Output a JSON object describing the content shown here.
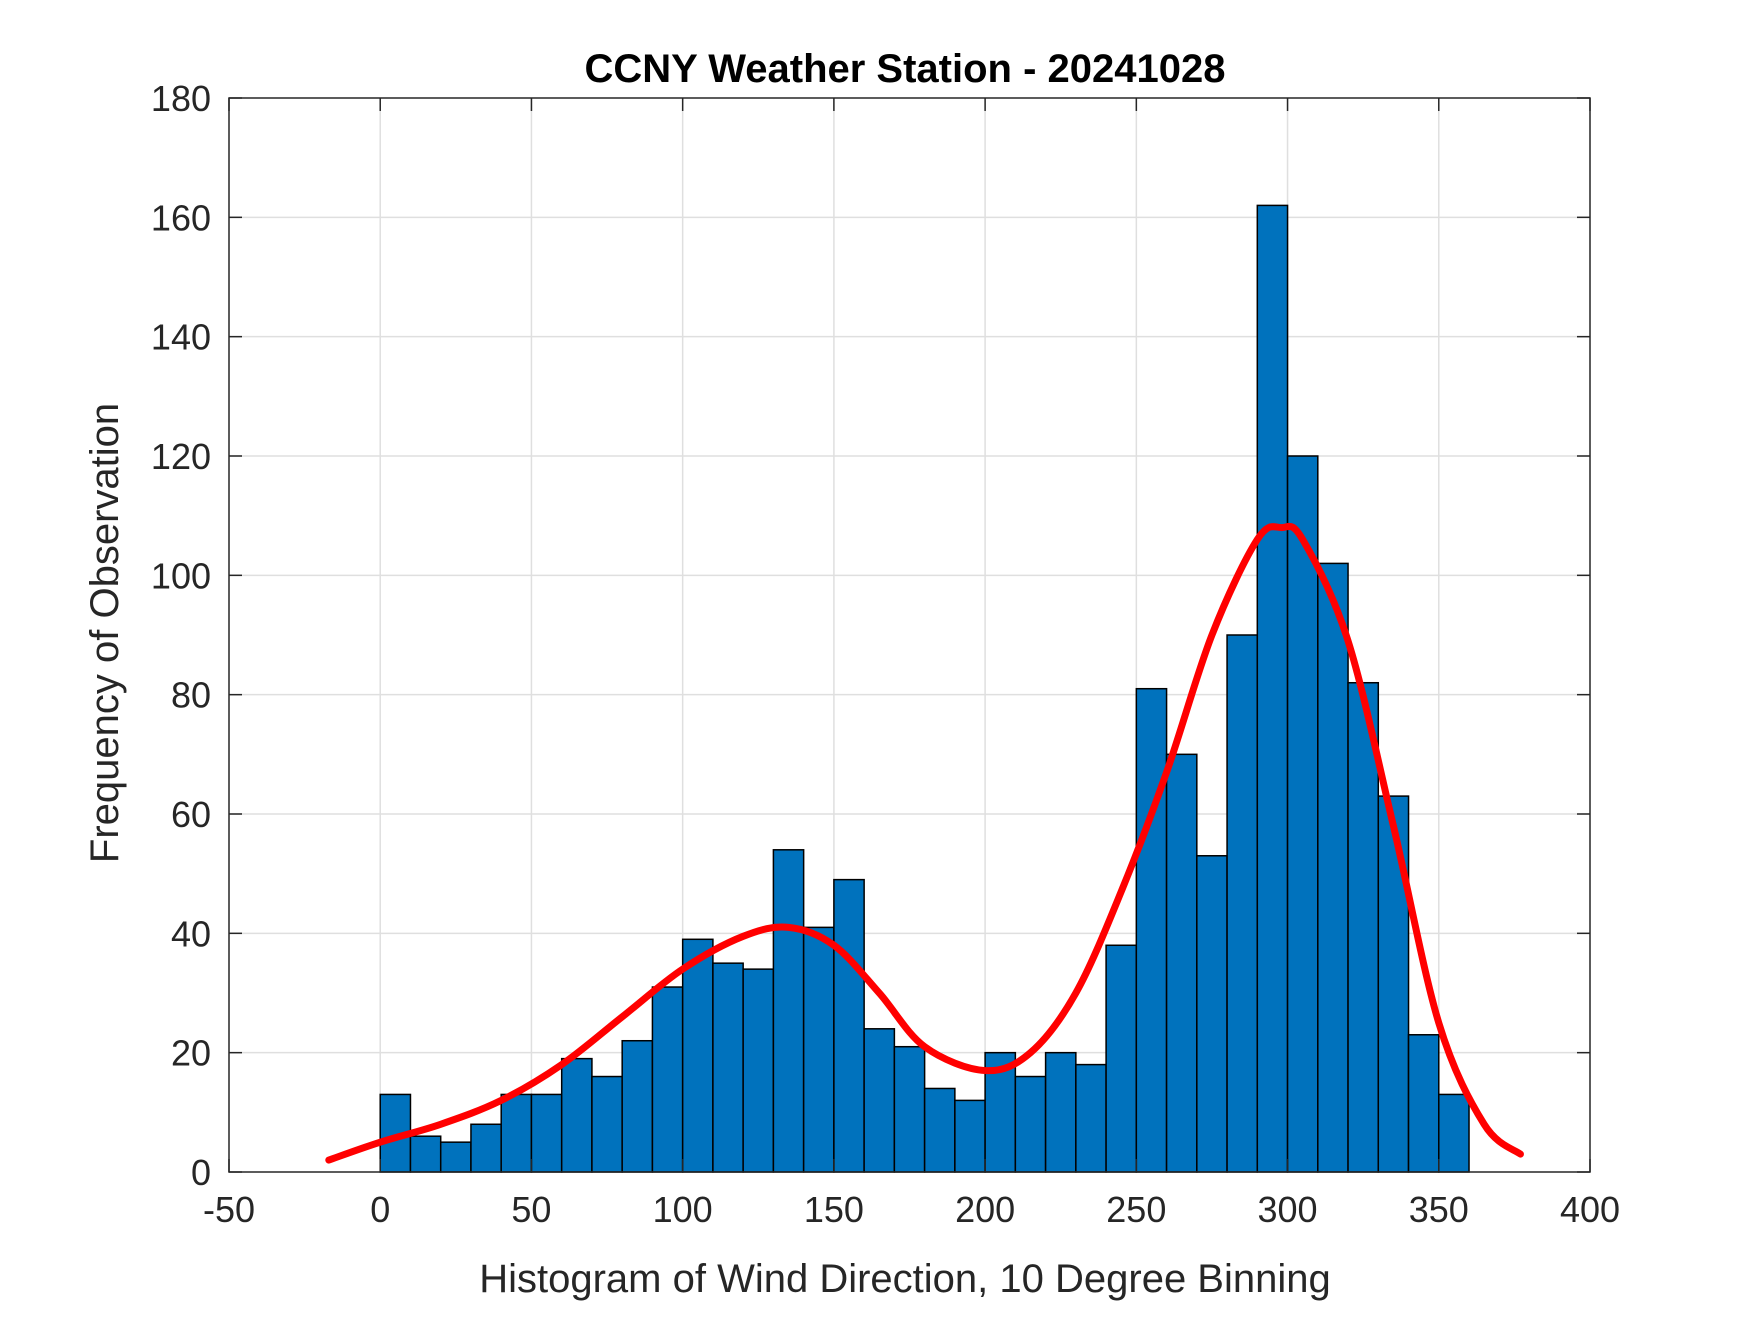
{
  "chart_data": {
    "type": "bar",
    "title": "CCNY Weather Station - 20241028",
    "xlabel": "Histogram of Wind Direction, 10 Degree Binning",
    "ylabel": "Frequency of Observation",
    "xlim": [
      -50,
      400
    ],
    "ylim": [
      0,
      180
    ],
    "xticks": [
      -50,
      0,
      50,
      100,
      150,
      200,
      250,
      300,
      350,
      400
    ],
    "yticks": [
      0,
      20,
      40,
      60,
      80,
      100,
      120,
      140,
      160,
      180
    ],
    "grid": true,
    "bin_width": 10,
    "bins": [
      {
        "x0": 0,
        "value": 13
      },
      {
        "x0": 10,
        "value": 6
      },
      {
        "x0": 20,
        "value": 5
      },
      {
        "x0": 30,
        "value": 8
      },
      {
        "x0": 40,
        "value": 13
      },
      {
        "x0": 50,
        "value": 13
      },
      {
        "x0": 60,
        "value": 19
      },
      {
        "x0": 70,
        "value": 16
      },
      {
        "x0": 80,
        "value": 22
      },
      {
        "x0": 90,
        "value": 31
      },
      {
        "x0": 100,
        "value": 39
      },
      {
        "x0": 110,
        "value": 35
      },
      {
        "x0": 120,
        "value": 34
      },
      {
        "x0": 130,
        "value": 54
      },
      {
        "x0": 140,
        "value": 41
      },
      {
        "x0": 150,
        "value": 49
      },
      {
        "x0": 160,
        "value": 24
      },
      {
        "x0": 170,
        "value": 21
      },
      {
        "x0": 180,
        "value": 14
      },
      {
        "x0": 190,
        "value": 12
      },
      {
        "x0": 200,
        "value": 20
      },
      {
        "x0": 210,
        "value": 16
      },
      {
        "x0": 220,
        "value": 20
      },
      {
        "x0": 230,
        "value": 18
      },
      {
        "x0": 240,
        "value": 38
      },
      {
        "x0": 250,
        "value": 81
      },
      {
        "x0": 260,
        "value": 70
      },
      {
        "x0": 270,
        "value": 53
      },
      {
        "x0": 280,
        "value": 90
      },
      {
        "x0": 290,
        "value": 162
      },
      {
        "x0": 300,
        "value": 120
      },
      {
        "x0": 310,
        "value": 102
      },
      {
        "x0": 320,
        "value": 82
      },
      {
        "x0": 330,
        "value": 63
      },
      {
        "x0": 340,
        "value": 23
      },
      {
        "x0": 350,
        "value": 13
      }
    ],
    "fit_curve": {
      "x": [
        -17,
        0,
        20,
        40,
        60,
        80,
        100,
        120,
        135,
        150,
        165,
        180,
        200,
        215,
        230,
        245,
        260,
        275,
        290,
        298,
        305,
        320,
        335,
        350,
        365,
        377
      ],
      "y": [
        2,
        5,
        8,
        12,
        18,
        26,
        34,
        39.5,
        41,
        38,
        30,
        21,
        17,
        20,
        30,
        47,
        67,
        90,
        106,
        108,
        106,
        89,
        58,
        25,
        8,
        3
      ]
    },
    "colors": {
      "bar_fill": "#0072BD",
      "bar_edge": "#000000",
      "curve": "#FF0000",
      "grid": "#DFDFDF",
      "axes": "#262626"
    }
  }
}
